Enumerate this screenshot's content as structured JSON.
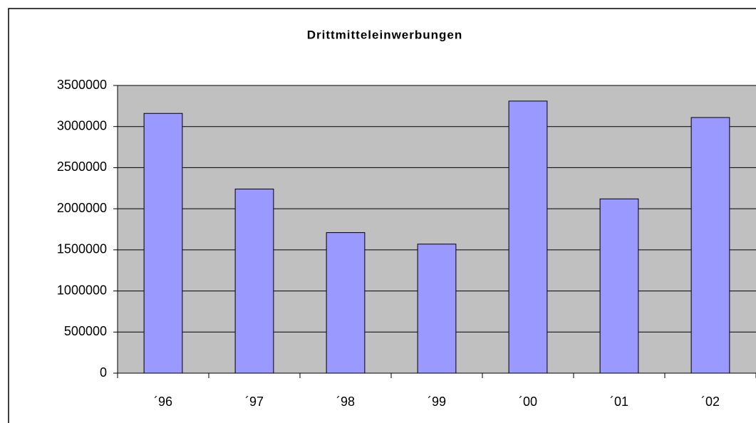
{
  "chart_data": {
    "type": "bar",
    "title": "Drittmitteleinwerbungen",
    "categories": [
      "´96",
      "´97",
      "´98",
      "´99",
      "´00",
      "´01",
      "´02"
    ],
    "values": [
      3160000,
      2240000,
      1710000,
      1570000,
      3310000,
      2120000,
      3110000
    ],
    "color": "#9999ff",
    "ylim": [
      0,
      3500000
    ],
    "yticks": [
      0,
      500000,
      1000000,
      1500000,
      2000000,
      2500000,
      3000000,
      3500000
    ],
    "grid": true
  }
}
